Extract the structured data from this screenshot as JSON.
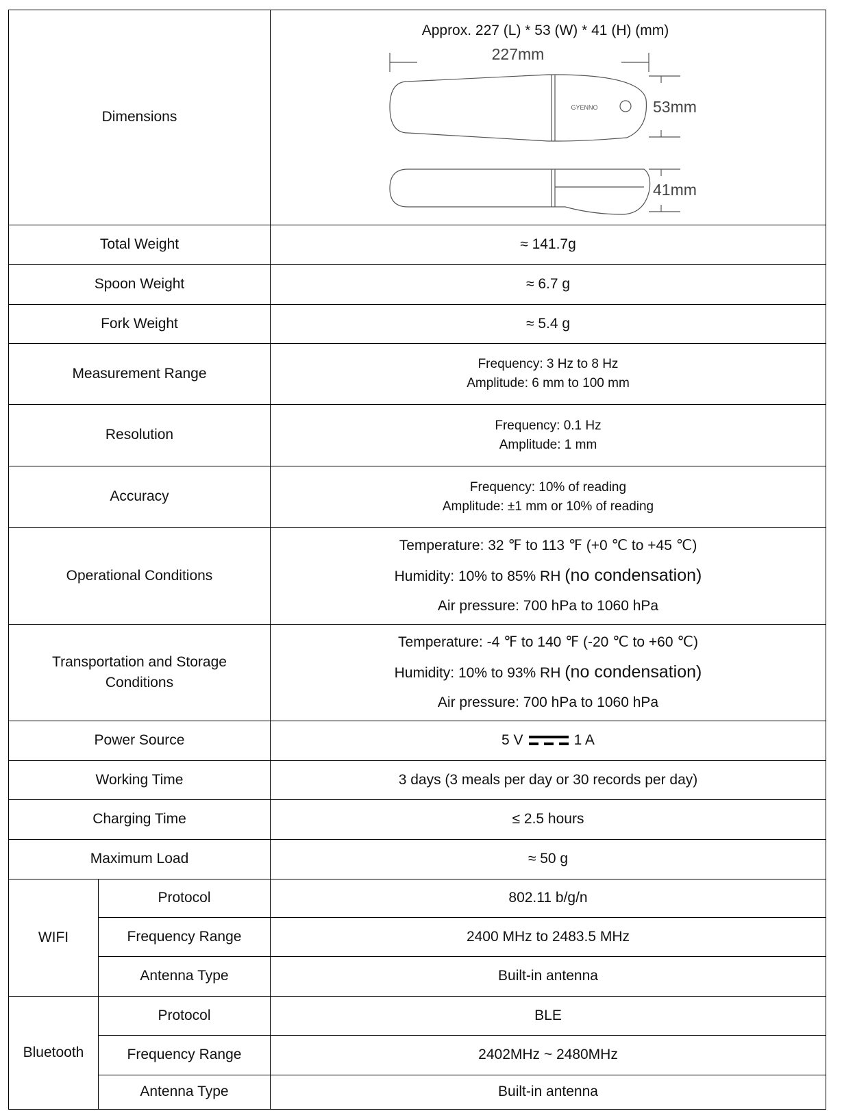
{
  "dimensions": {
    "label": "Dimensions",
    "caption": "Approx. 227 (L) * 53 (W) * 41 (H) (mm)",
    "length": "227mm",
    "width": "53mm",
    "height": "41mm",
    "brand": "GYENNO"
  },
  "rows": [
    {
      "label": "Total Weight",
      "lines": [
        "≈ 141.7g"
      ]
    },
    {
      "label": "Spoon Weight",
      "lines": [
        "≈ 6.7 g"
      ]
    },
    {
      "label": "Fork Weight",
      "lines": [
        "≈ 5.4 g"
      ]
    },
    {
      "label": "Measurement Range",
      "lines": [
        "Frequency: 3 Hz to 8 Hz",
        "Amplitude: 6 mm to 100 mm"
      ]
    },
    {
      "label": "Resolution",
      "lines": [
        "Frequency: 0.1 Hz",
        "Amplitude: 1 mm"
      ]
    },
    {
      "label": "Accuracy",
      "lines": [
        "Frequency: 10% of reading",
        "Amplitude: ±1 mm or 10% of reading"
      ]
    },
    {
      "label": "Operational Conditions",
      "lines": [
        "Temperature: 32 ℉ to 113 ℉ (+0 ℃ to +45 ℃)",
        [
          "Humidity: 10% to 85% RH",
          "(no condensation)"
        ],
        "Air pressure: 700 hPa to 1060 hPa"
      ]
    },
    {
      "label": "Transportation and Storage Conditions",
      "lines": [
        "Temperature: -4 ℉ to 140 ℉ (-20 ℃ to +60 ℃)",
        [
          "Humidity: 10% to 93% RH",
          "(no condensation)"
        ],
        "Air pressure: 700 hPa to 1060 hPa"
      ]
    },
    {
      "label": "Power Source",
      "lines": [
        [
          "5 V",
          "1 A"
        ]
      ]
    },
    {
      "label": "Working Time",
      "lines": [
        "3 days (3 meals per day or 30 records per day)"
      ]
    },
    {
      "label": "Charging Time",
      "lines": [
        "≤ 2.5 hours"
      ]
    },
    {
      "label": "Maximum Load",
      "lines": [
        "≈ 50 g"
      ]
    }
  ],
  "groups": [
    {
      "label": "WIFI",
      "rows": [
        {
          "label": "Protocol",
          "value": "802.11 b/g/n"
        },
        {
          "label": "Frequency Range",
          "value": "2400 MHz to 2483.5 MHz"
        },
        {
          "label": "Antenna Type",
          "value": "Built-in antenna"
        }
      ]
    },
    {
      "label": "Bluetooth",
      "rows": [
        {
          "label": "Protocol",
          "value": "BLE"
        },
        {
          "label": "Frequency Range",
          "value": "2402MHz ~ 2480MHz"
        },
        {
          "label": "Antenna Type",
          "value": "Built-in antenna"
        }
      ]
    }
  ]
}
